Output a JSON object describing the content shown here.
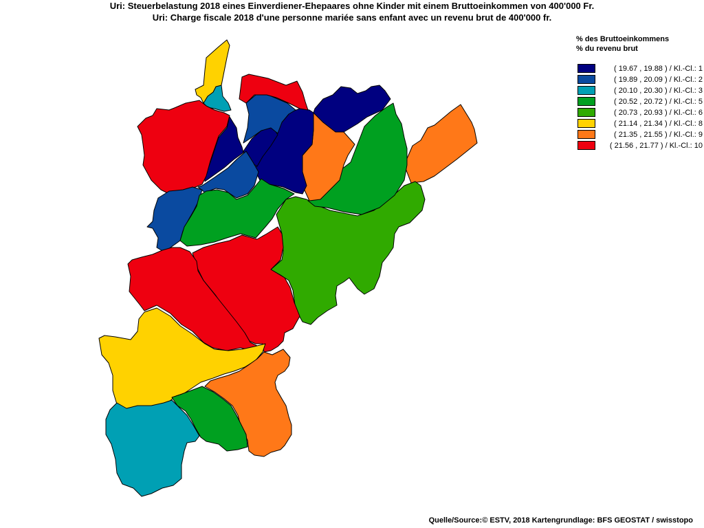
{
  "titles": {
    "line1": "Uri: Steuerbelastung 2018 eines Einverdiener-Ehepaares ohne Kinder mit einem Bruttoeinkommen von 400'000 Fr.",
    "line2": "Uri: Charge fiscale 2018 d'une personne mariée sans enfant avec un revenu brut de 400'000 fr."
  },
  "legend": {
    "heading_de": "% des Bruttoeinkommens",
    "heading_fr": "% du revenu brut",
    "classes": [
      {
        "label": "( 19.67 , 19.88 ) / Kl.-Cl.: 1",
        "color": "#000080"
      },
      {
        "label": "( 19.89 , 20.09 ) / Kl.-Cl.: 2",
        "color": "#0A4AA0"
      },
      {
        "label": "( 20.10 , 20.30 ) / Kl.-Cl.: 3",
        "color": "#00A0B4"
      },
      {
        "label": "( 20.52 , 20.72 ) / Kl.-Cl.: 5",
        "color": "#00A020"
      },
      {
        "label": "( 20.73 , 20.93 ) / Kl.-Cl.: 6",
        "color": "#30AA00"
      },
      {
        "label": "( 21.14 , 21.34 ) / Kl.-Cl.: 8",
        "color": "#FFD200"
      },
      {
        "label": "( 21.35 , 21.55 ) / Kl.-Cl.: 9",
        "color": "#FF7818"
      },
      {
        "label": "( 21.56 , 21.77 ) / Kl.-Cl.: 10",
        "color": "#EE0010"
      }
    ]
  },
  "source": "Quelle/Source:© ESTV, 2018 Kartengrundlage: BFS GEOSTAT / swisstopo"
}
